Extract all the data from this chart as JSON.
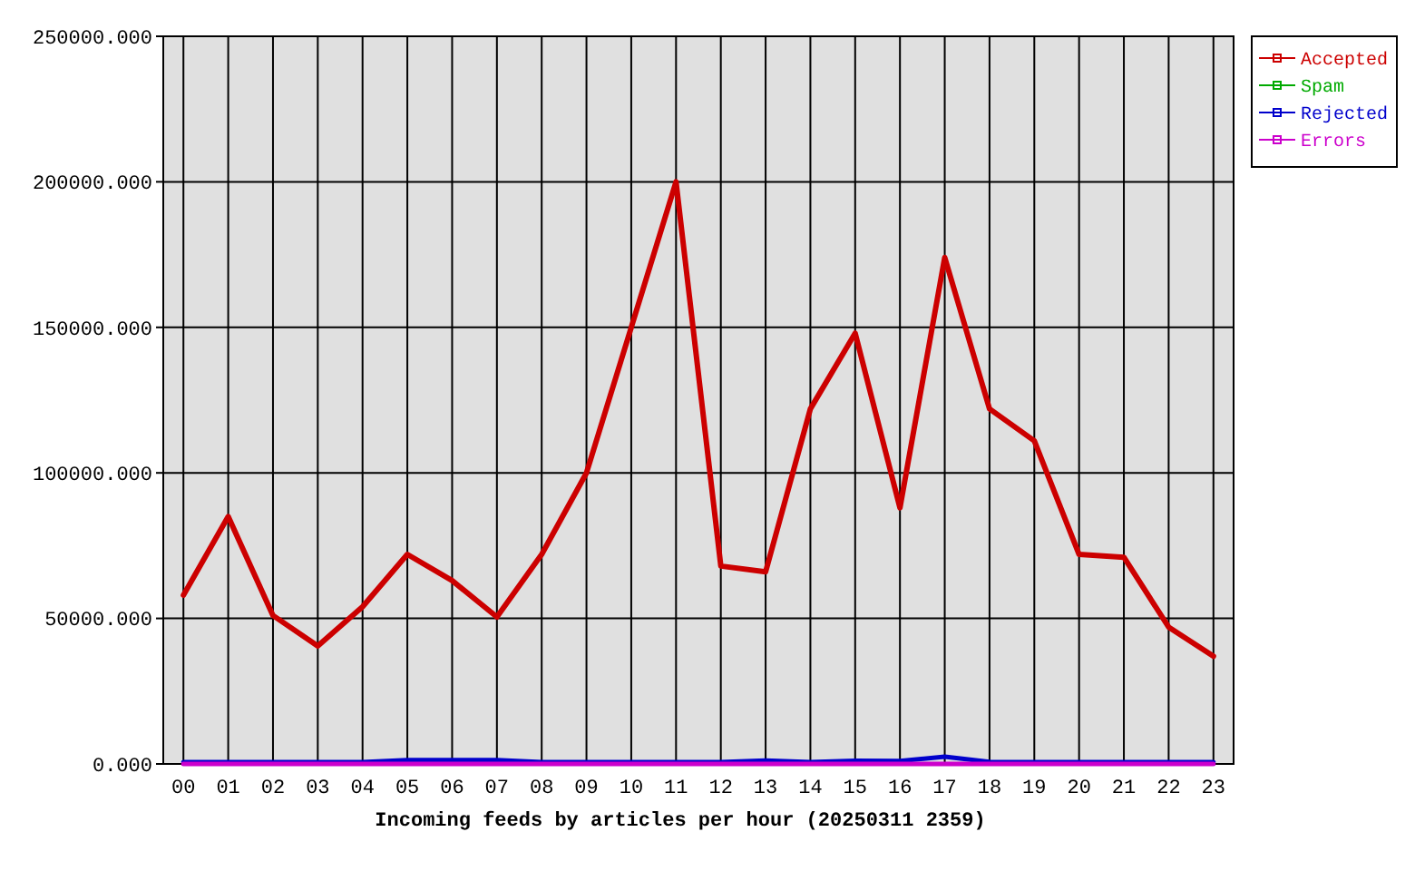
{
  "chart_data": {
    "type": "line",
    "xlabel": "Incoming feeds by articles per hour (20250311 2359)",
    "categories": [
      "00",
      "01",
      "02",
      "03",
      "04",
      "05",
      "06",
      "07",
      "08",
      "09",
      "10",
      "11",
      "12",
      "13",
      "14",
      "15",
      "16",
      "17",
      "18",
      "19",
      "20",
      "21",
      "22",
      "23"
    ],
    "series": [
      {
        "name": "Accepted",
        "color": "#cc0000",
        "values": [
          58000,
          85000,
          51000,
          40500,
          54000,
          72000,
          63000,
          50500,
          72000,
          100000,
          150000,
          200000,
          68000,
          66000,
          122000,
          148000,
          88000,
          174000,
          122000,
          111000,
          72000,
          71000,
          47000,
          37000
        ]
      },
      {
        "name": "Spam",
        "color": "#00aa00",
        "values": [
          null,
          null,
          null,
          null,
          null,
          null,
          null,
          null,
          null,
          null,
          null,
          null,
          null,
          null,
          null,
          null,
          null,
          null,
          null,
          null,
          null,
          null,
          null,
          null
        ]
      },
      {
        "name": "Rejected",
        "color": "#0000cc",
        "values": [
          600,
          600,
          600,
          600,
          600,
          1300,
          1300,
          1300,
          600,
          600,
          600,
          600,
          600,
          1200,
          600,
          1100,
          1000,
          2500,
          700,
          600,
          600,
          600,
          600,
          600
        ]
      },
      {
        "name": "Errors",
        "color": "#cc00cc",
        "values": [
          0,
          0,
          0,
          0,
          0,
          0,
          0,
          0,
          0,
          0,
          0,
          0,
          0,
          0,
          0,
          0,
          0,
          0,
          0,
          0,
          0,
          0,
          0,
          0
        ]
      }
    ],
    "ylim": [
      0,
      250000
    ],
    "yticks": [
      {
        "value": 0,
        "label": "0.000"
      },
      {
        "value": 50000,
        "label": "50000.000"
      },
      {
        "value": 100000,
        "label": "100000.000"
      },
      {
        "value": 150000,
        "label": "150000.000"
      },
      {
        "value": 200000,
        "label": "200000.000"
      },
      {
        "value": 250000,
        "label": "250000.000"
      }
    ],
    "grid": true,
    "legend": "top right",
    "line_style": "solid"
  }
}
